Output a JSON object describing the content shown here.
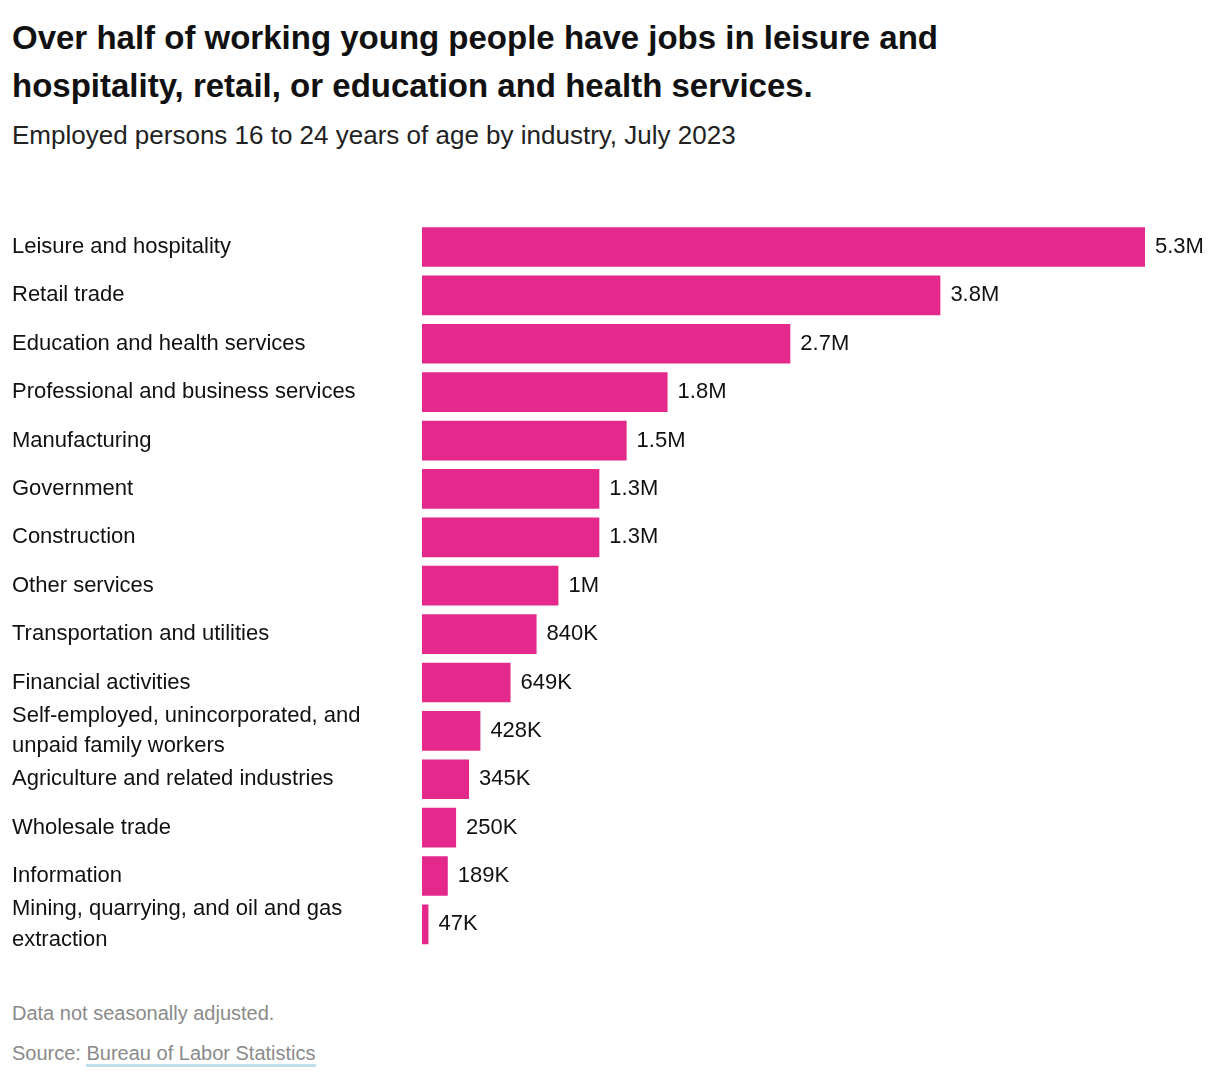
{
  "chart_data": {
    "type": "bar",
    "title": "Over half of working young people have jobs in leisure and hospitality, retail, or education and health services.",
    "subtitle": "Employed persons 16 to 24 years of age by industry, July 2023",
    "note": "Data not seasonally adjusted.",
    "source": "Source: Bureau of Labor Statistics",
    "categories": [
      "Leisure and hospitality",
      "Retail trade",
      "Education and health services",
      "Professional and business services",
      "Manufacturing",
      "Government",
      "Construction",
      "Other services",
      "Transportation and utilities",
      "Financial activities",
      "Self-employed, unincorporated, and unpaid family workers",
      "Agriculture and related industries",
      "Wholesale trade",
      "Information",
      "Mining, quarrying, and oil and gas extraction"
    ],
    "values": [
      5300000,
      3800000,
      2700000,
      1800000,
      1500000,
      1300000,
      1300000,
      1000000,
      840000,
      649000,
      428000,
      345000,
      250000,
      189000,
      47000
    ],
    "value_labels": [
      "5.3M",
      "3.8M",
      "2.7M",
      "1.8M",
      "1.5M",
      "1.3M",
      "1.3M",
      "1M",
      "840K",
      "649K",
      "428K",
      "345K",
      "250K",
      "189K",
      "47K"
    ],
    "color": "#e5298c",
    "orientation": "horizontal",
    "xlim": [
      0,
      5300000
    ],
    "grid": false,
    "data_labels": true,
    "tick_labels": "y"
  }
}
